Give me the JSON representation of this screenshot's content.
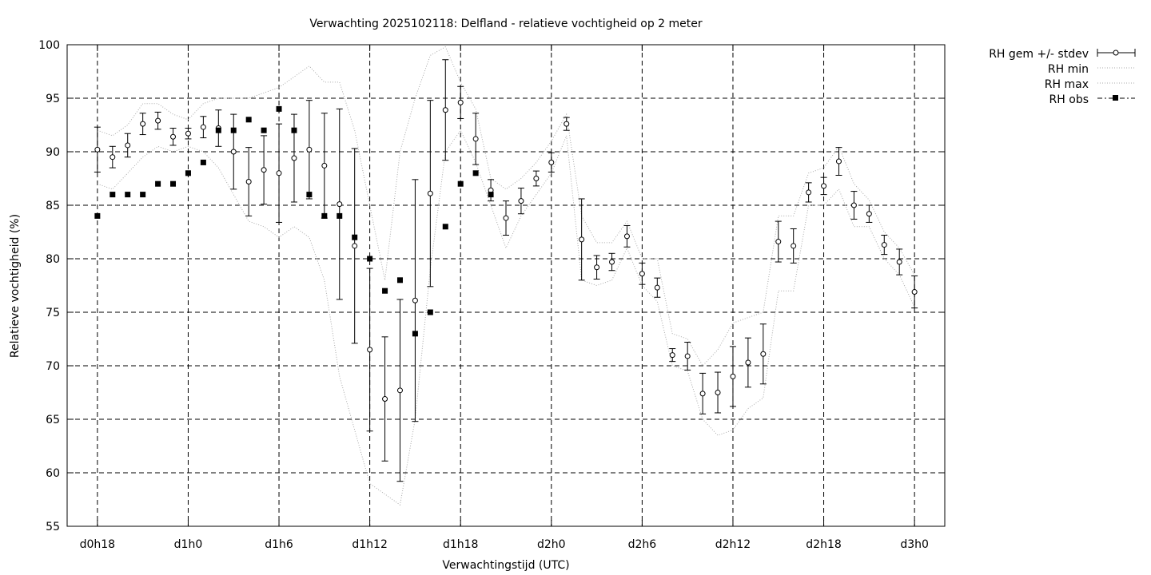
{
  "chart_data": {
    "type": "line",
    "title": "Verwachting 2025102118: Delfland - relatieve vochtigheid op 2 meter",
    "xlabel": "Verwachtingstijd (UTC)",
    "ylabel": "Relatieve vochtigheid (%)",
    "xlim": [
      -2,
      56
    ],
    "ylim": [
      55,
      100
    ],
    "grid": true,
    "legend_position": "outside-top-right",
    "xticks": [
      {
        "x": 0,
        "label": "d0h18"
      },
      {
        "x": 6,
        "label": "d1h0"
      },
      {
        "x": 12,
        "label": "d1h6"
      },
      {
        "x": 18,
        "label": "d1h12"
      },
      {
        "x": 24,
        "label": "d1h18"
      },
      {
        "x": 30,
        "label": "d2h0"
      },
      {
        "x": 36,
        "label": "d2h6"
      },
      {
        "x": 42,
        "label": "d2h12"
      },
      {
        "x": 48,
        "label": "d2h18"
      },
      {
        "x": 54,
        "label": "d3h0"
      }
    ],
    "yticks": [
      55,
      60,
      65,
      70,
      75,
      80,
      85,
      90,
      95,
      100
    ],
    "x": [
      0,
      1,
      2,
      3,
      4,
      5,
      6,
      7,
      8,
      9,
      10,
      11,
      12,
      13,
      14,
      15,
      16,
      17,
      18,
      19,
      20,
      21,
      22,
      23,
      24,
      25,
      26,
      27,
      28,
      29,
      30,
      31,
      32,
      33,
      34,
      35,
      36,
      37,
      38,
      39,
      40,
      41,
      42,
      43,
      44,
      45,
      46,
      47,
      48,
      49,
      50,
      51,
      52,
      53,
      54
    ],
    "series": [
      {
        "name": "RH gem +/- stdev",
        "mean": [
          90.2,
          89.5,
          90.6,
          92.6,
          92.9,
          91.4,
          91.7,
          92.3,
          92.2,
          90.0,
          87.2,
          88.3,
          88.0,
          89.4,
          90.2,
          88.7,
          85.1,
          81.2,
          71.5,
          66.9,
          67.7,
          76.1,
          86.1,
          93.9,
          94.6,
          91.2,
          86.4,
          83.8,
          85.4,
          87.5,
          89.0,
          92.6,
          81.8,
          79.2,
          79.7,
          82.1,
          78.6,
          77.3,
          71.0,
          70.9,
          67.4,
          67.5,
          69.0,
          70.3,
          71.1,
          81.6,
          81.2,
          86.2,
          86.8,
          89.1,
          85.0,
          84.2,
          81.3,
          79.7,
          76.9
        ],
        "stdev": [
          2.1,
          1.0,
          1.1,
          1.0,
          0.8,
          0.8,
          0.5,
          1.0,
          1.7,
          3.5,
          3.2,
          3.2,
          4.6,
          4.1,
          4.6,
          4.9,
          8.9,
          9.1,
          7.6,
          5.8,
          8.5,
          11.3,
          8.7,
          4.7,
          1.5,
          2.4,
          1.0,
          1.6,
          1.2,
          0.7,
          0.9,
          0.6,
          3.8,
          1.1,
          0.8,
          1.0,
          1.0,
          0.9,
          0.6,
          1.3,
          1.9,
          1.9,
          2.8,
          2.3,
          2.8,
          1.9,
          1.6,
          0.9,
          0.8,
          1.3,
          1.3,
          0.8,
          0.9,
          1.2,
          1.5
        ]
      },
      {
        "name": "RH min",
        "values": [
          87.0,
          86.5,
          88.0,
          89.5,
          90.5,
          90.0,
          90.5,
          90.0,
          88.5,
          86.0,
          83.5,
          83.0,
          82.0,
          83.0,
          82.0,
          78.0,
          69.0,
          64.0,
          59.0,
          58.0,
          57.0,
          65.0,
          79.0,
          90.0,
          92.0,
          89.0,
          85.0,
          81.0,
          84.0,
          86.0,
          88.0,
          91.5,
          78.0,
          77.5,
          78.0,
          81.0,
          77.5,
          76.0,
          70.0,
          69.5,
          65.0,
          63.5,
          64.0,
          66.0,
          67.0,
          77.0,
          77.0,
          85.0,
          85.0,
          86.5,
          83.0,
          83.0,
          80.0,
          78.5,
          75.5
        ]
      },
      {
        "name": "RH max",
        "values": [
          92.0,
          91.5,
          92.5,
          94.5,
          94.5,
          93.5,
          93.0,
          94.5,
          95.0,
          95.0,
          95.0,
          95.5,
          96.0,
          97.0,
          98.0,
          96.5,
          96.5,
          92.0,
          85.0,
          78.0,
          90.0,
          95.0,
          99.0,
          99.8,
          96.5,
          94.0,
          87.5,
          86.5,
          87.5,
          89.0,
          91.0,
          93.5,
          84.0,
          81.5,
          81.5,
          83.5,
          80.0,
          80.0,
          73.0,
          72.5,
          70.0,
          71.5,
          74.0,
          74.5,
          75.0,
          84.0,
          84.0,
          88.0,
          88.5,
          90.5,
          87.0,
          85.5,
          82.5,
          81.0,
          78.5
        ]
      },
      {
        "name": "RH obs",
        "x": [
          0,
          1,
          2,
          3,
          4,
          5,
          6,
          7,
          8,
          9,
          10,
          11,
          12,
          13,
          14,
          15,
          16,
          17,
          18,
          19,
          20,
          21,
          22,
          23,
          24,
          25,
          26
        ],
        "values": [
          84,
          86,
          86,
          86,
          87,
          87,
          88,
          89,
          92,
          92,
          93,
          92,
          94,
          92,
          86,
          84,
          84,
          82,
          80,
          77,
          78,
          73,
          75,
          83,
          87,
          88,
          86
        ]
      }
    ]
  }
}
